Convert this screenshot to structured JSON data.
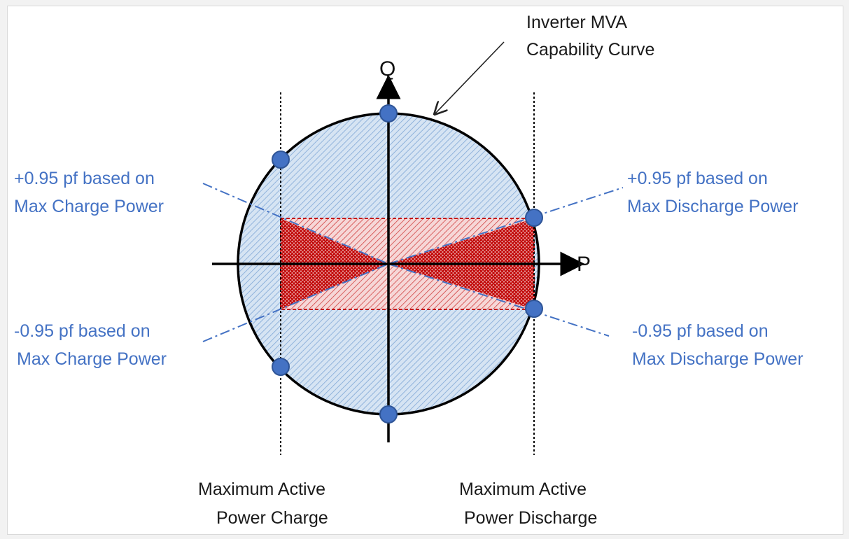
{
  "diagram": {
    "axes": {
      "q_label": "Q",
      "p_label": "P"
    },
    "callout": {
      "line1": "Inverter MVA",
      "line2": "Capability Curve"
    },
    "annotations": {
      "pos_charge": {
        "line1": "+0.95 pf based on",
        "line2": "Max Charge Power"
      },
      "pos_discharge": {
        "line1": "+0.95 pf based on",
        "line2": "Max Discharge Power"
      },
      "neg_charge": {
        "line1": "-0.95 pf based on",
        "line2": "Max Charge Power"
      },
      "neg_discharge": {
        "line1": "-0.95 pf based on",
        "line2": "Max Discharge Power"
      }
    },
    "limits": {
      "charge": {
        "line1": "Maximum Active",
        "line2": "Power Charge"
      },
      "discharge": {
        "line1": "Maximum Active",
        "line2": "Power Discharge"
      }
    },
    "colors": {
      "circle_fill": "#c9dcef",
      "hatch_blue": "#7fa7d6",
      "red_fill": "#e8a0a0",
      "red_hatch": "#c00000",
      "marker": "#4472c4",
      "marker_stroke": "#2f5597",
      "blue_text": "#4472c4",
      "dashdot": "#4472c4"
    }
  }
}
